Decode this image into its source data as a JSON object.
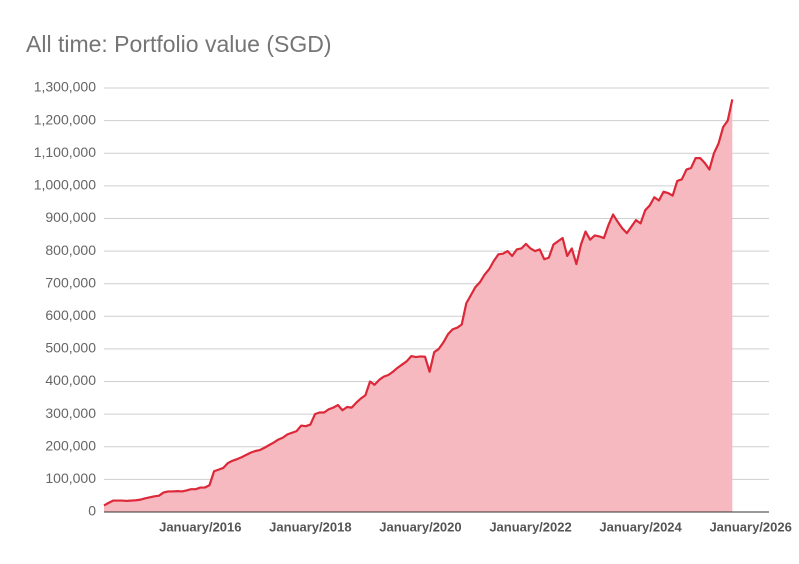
{
  "chart_data": {
    "type": "area",
    "title": "All time: Portfolio value (SGD)",
    "x": [
      "2014-04",
      "2014-05",
      "2014-06",
      "2014-07",
      "2014-08",
      "2014-09",
      "2014-10",
      "2014-11",
      "2014-12",
      "2015-01",
      "2015-02",
      "2015-03",
      "2015-04",
      "2015-05",
      "2015-06",
      "2015-07",
      "2015-08",
      "2015-09",
      "2015-10",
      "2015-11",
      "2015-12",
      "2016-01",
      "2016-02",
      "2016-03",
      "2016-04",
      "2016-05",
      "2016-06",
      "2016-07",
      "2016-08",
      "2016-09",
      "2016-10",
      "2016-11",
      "2016-12",
      "2017-01",
      "2017-02",
      "2017-03",
      "2017-04",
      "2017-05",
      "2017-06",
      "2017-07",
      "2017-08",
      "2017-09",
      "2017-10",
      "2017-11",
      "2017-12",
      "2018-01",
      "2018-02",
      "2018-03",
      "2018-04",
      "2018-05",
      "2018-06",
      "2018-07",
      "2018-08",
      "2018-09",
      "2018-10",
      "2018-11",
      "2018-12",
      "2019-01",
      "2019-02",
      "2019-03",
      "2019-04",
      "2019-05",
      "2019-06",
      "2019-07",
      "2019-08",
      "2019-09",
      "2019-10",
      "2019-11",
      "2019-12",
      "2020-01",
      "2020-02",
      "2020-03",
      "2020-04",
      "2020-05",
      "2020-06",
      "2020-07",
      "2020-08",
      "2020-09",
      "2020-10",
      "2020-11",
      "2020-12",
      "2021-01",
      "2021-02",
      "2021-03",
      "2021-04",
      "2021-05",
      "2021-06",
      "2021-07",
      "2021-08",
      "2021-09",
      "2021-10",
      "2021-11",
      "2021-12",
      "2022-01",
      "2022-02",
      "2022-03",
      "2022-04",
      "2022-05",
      "2022-06",
      "2022-07",
      "2022-08",
      "2022-09",
      "2022-10",
      "2022-11",
      "2022-12",
      "2023-01",
      "2023-02",
      "2023-03",
      "2023-04",
      "2023-05",
      "2023-06",
      "2023-07",
      "2023-08",
      "2023-09",
      "2023-10",
      "2023-11",
      "2023-12",
      "2024-01",
      "2024-02",
      "2024-03",
      "2024-04",
      "2024-05",
      "2024-06",
      "2024-07",
      "2024-08",
      "2024-09",
      "2024-10",
      "2024-11",
      "2024-12",
      "2025-01",
      "2025-02",
      "2025-03",
      "2025-04",
      "2025-05",
      "2025-06",
      "2025-07",
      "2025-08",
      "2025-09"
    ],
    "series": [
      {
        "name": "Portfolio value",
        "color": "#dc2838",
        "fill": "#f5b9bf",
        "values": [
          20000,
          28000,
          35000,
          35000,
          35000,
          34000,
          35000,
          36000,
          38000,
          42000,
          45000,
          48000,
          50000,
          60000,
          63000,
          63000,
          64000,
          63000,
          66000,
          70000,
          70000,
          75000,
          75000,
          82000,
          125000,
          130000,
          135000,
          150000,
          157000,
          162000,
          168000,
          175000,
          182000,
          187000,
          190000,
          197000,
          205000,
          213000,
          222000,
          228000,
          238000,
          243000,
          248000,
          265000,
          263000,
          268000,
          300000,
          305000,
          305000,
          315000,
          320000,
          328000,
          312000,
          322000,
          320000,
          335000,
          348000,
          358000,
          400000,
          390000,
          405000,
          415000,
          420000,
          430000,
          442000,
          452000,
          462000,
          478000,
          475000,
          477000,
          476000,
          430000,
          490000,
          500000,
          520000,
          545000,
          560000,
          565000,
          575000,
          640000,
          665000,
          690000,
          705000,
          728000,
          745000,
          770000,
          790000,
          792000,
          800000,
          785000,
          805000,
          808000,
          822000,
          808000,
          800000,
          805000,
          775000,
          780000,
          820000,
          830000,
          840000,
          785000,
          808000,
          760000,
          820000,
          860000,
          835000,
          848000,
          845000,
          840000,
          880000,
          912000,
          890000,
          870000,
          855000,
          875000,
          895000,
          885000,
          925000,
          940000,
          965000,
          955000,
          982000,
          978000,
          970000,
          1015000,
          1020000,
          1050000,
          1055000,
          1085000,
          1085000,
          1070000,
          1050000,
          1100000,
          1130000,
          1180000,
          1200000,
          1265000
        ]
      }
    ],
    "xlim": [
      "2014-04",
      "2026-05"
    ],
    "xticks": [
      {
        "value": "2016-01",
        "label": "January/2016"
      },
      {
        "value": "2018-01",
        "label": "January/2018"
      },
      {
        "value": "2020-01",
        "label": "January/2020"
      },
      {
        "value": "2022-01",
        "label": "January/2022"
      },
      {
        "value": "2024-01",
        "label": "January/2024"
      },
      {
        "value": "2026-01",
        "label": "January/2026"
      }
    ],
    "ylim": [
      0,
      1300000
    ],
    "yticks": [
      0,
      {
        "value": 100000,
        "label": "100,000"
      },
      {
        "value": 200000,
        "label": "200,000"
      },
      {
        "value": 300000,
        "label": "300,000"
      },
      {
        "value": 400000,
        "label": "400,000"
      },
      {
        "value": 500000,
        "label": "500,000"
      },
      {
        "value": 600000,
        "label": "600,000"
      },
      {
        "value": 700000,
        "label": "700,000"
      },
      {
        "value": 800000,
        "label": "800,000"
      },
      {
        "value": 900000,
        "label": "900,000"
      },
      {
        "value": 1000000,
        "label": "1,000,000"
      },
      {
        "value": 1100000,
        "label": "1,100,000"
      },
      {
        "value": 1200000,
        "label": "1,200,000"
      },
      {
        "value": 1300000,
        "label": "1,300,000"
      }
    ],
    "grid": true
  }
}
